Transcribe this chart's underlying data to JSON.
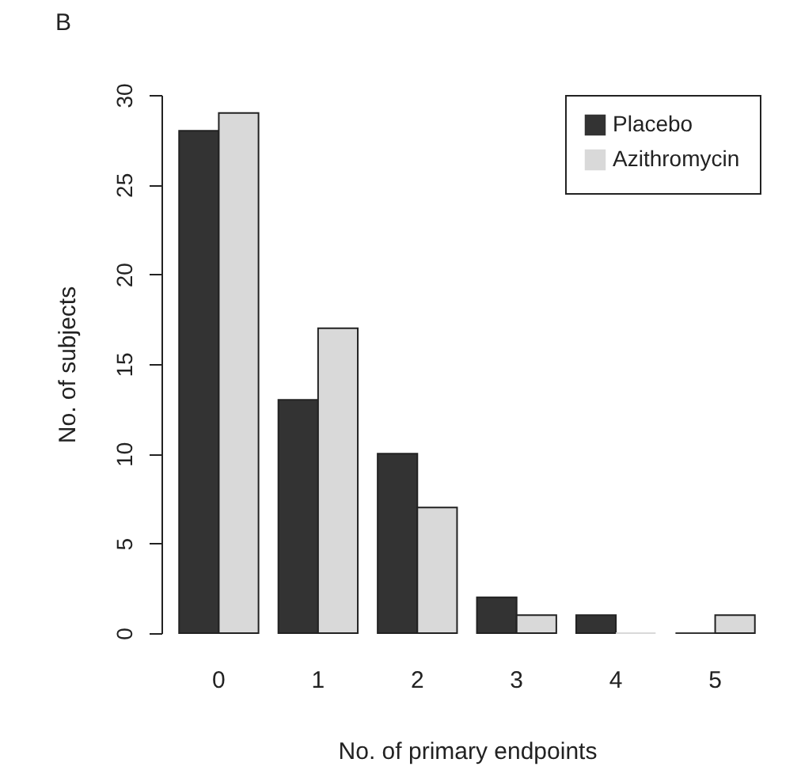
{
  "chart_data": {
    "type": "bar",
    "title": "B",
    "xlabel": "No. of primary endpoints",
    "ylabel": "No. of subjects",
    "categories": [
      "0",
      "1",
      "2",
      "3",
      "4",
      "5"
    ],
    "series": [
      {
        "name": "Placebo",
        "color": "#333333",
        "values": [
          28,
          13,
          10,
          2,
          1,
          0
        ]
      },
      {
        "name": "Azithromycin",
        "color": "#d9d9d9",
        "values": [
          29,
          17,
          7,
          1,
          0,
          1
        ]
      }
    ],
    "ylim": [
      0,
      30
    ],
    "yticks": [
      0,
      5,
      10,
      15,
      20,
      25,
      30
    ],
    "grid": false,
    "legend": "top right"
  }
}
